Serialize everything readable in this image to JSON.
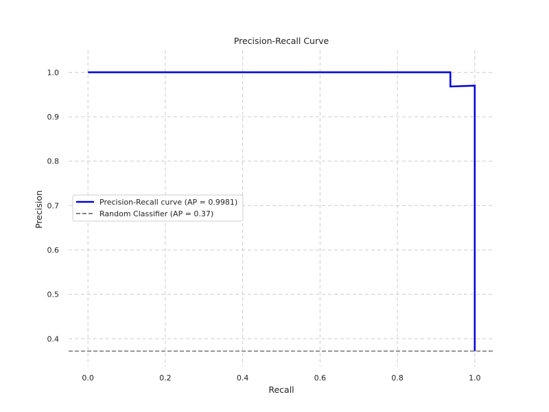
{
  "chart_data": {
    "type": "line",
    "title": "Precision-Recall Curve",
    "xlabel": "Recall",
    "ylabel": "Precision",
    "xlim": [
      -0.05,
      1.05
    ],
    "ylim": [
      0.337,
      1.05
    ],
    "xticks": [
      0.0,
      0.2,
      0.4,
      0.6,
      0.8,
      1.0
    ],
    "yticks": [
      0.4,
      0.5,
      0.6,
      0.7,
      0.8,
      0.9,
      1.0
    ],
    "xtick_labels": [
      "0.0",
      "0.2",
      "0.4",
      "0.6",
      "0.8",
      "1.0"
    ],
    "ytick_labels": [
      "0.4",
      "0.5",
      "0.6",
      "0.7",
      "0.8",
      "0.9",
      "1.0"
    ],
    "grid": true,
    "legend_position": "center-left",
    "series": [
      {
        "name": "Precision-Recall curve (AP =  0.9981)",
        "color": "#0000dd",
        "style": "solid-step",
        "x": [
          0.0,
          0.937,
          0.937,
          1.0,
          1.0
        ],
        "y": [
          1.0,
          1.0,
          0.968,
          0.97,
          0.372
        ]
      },
      {
        "name": "Random Classifier (AP =  0.37)",
        "color": "#808080",
        "style": "dashed",
        "y_constant": 0.372
      }
    ]
  }
}
